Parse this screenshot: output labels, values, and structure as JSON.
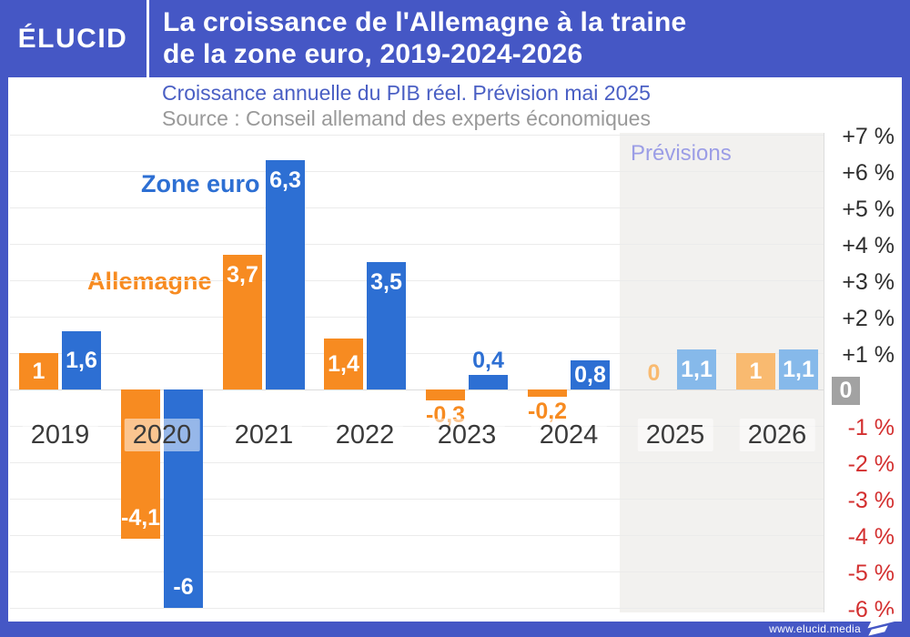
{
  "header": {
    "logo": "ÉLUCID",
    "title_line1": "La croissance de l'Allemagne à la traine",
    "title_line2": "de la zone euro, 2019-2024-2026"
  },
  "subheader": {
    "subtitle": "Croissance annuelle du PIB réel. Prévision mai 2025",
    "source": "Source : Conseil allemand des experts économiques"
  },
  "chart_data": {
    "type": "bar",
    "title": "La croissance de l'Allemagne à la traine de la zone euro, 2019-2024-2026",
    "subtitle": "Croissance annuelle du PIB réel. Prévision mai 2025",
    "source": "Source : Conseil allemand des experts économiques",
    "categories": [
      "2019",
      "2020",
      "2021",
      "2022",
      "2023",
      "2024",
      "2025",
      "2026"
    ],
    "series": [
      {
        "name": "Allemagne",
        "color": "#f78b21",
        "forecast_color": "#f9ba70",
        "values": [
          1,
          -4.1,
          3.7,
          1.4,
          -0.3,
          -0.2,
          0,
          1
        ],
        "labels": [
          "1",
          "-4,1",
          "3,7",
          "1,4",
          "-0,3",
          "-0,2",
          "0",
          "1"
        ],
        "label_positions": [
          "inside-center",
          "inside-bottom",
          "inside-top",
          "inside-center",
          "below",
          "below",
          "zero-label",
          "inside-center"
        ]
      },
      {
        "name": "Zone euro",
        "color": "#2d6fd3",
        "forecast_color": "#86b9ea",
        "values": [
          1.6,
          -6,
          6.3,
          3.5,
          0.4,
          0.8,
          1.1,
          1.1
        ],
        "labels": [
          "1,6",
          "-6",
          "6,3",
          "3,5",
          "0,4",
          "0,8",
          "1,1",
          "1,1"
        ],
        "label_positions": [
          "inside-center",
          "inside-bottom",
          "inside-top",
          "inside-top",
          "above",
          "inside-center",
          "inside-center",
          "inside-center"
        ]
      }
    ],
    "forecast_label": "Prévisions",
    "forecast_categories": [
      "2025",
      "2026"
    ],
    "forecast_start_index": 6,
    "ylim": [
      -6,
      7
    ],
    "y_ticks": [
      "+7 %",
      "+6 %",
      "+5 %",
      "+4 %",
      "+3 %",
      "+2 %",
      "+1 %",
      "0",
      "-1 %",
      "-2 %",
      "-3 %",
      "-4 %",
      "-5 %",
      "-6 %"
    ],
    "grid": true,
    "legend_position": "inline-labels",
    "colors": {
      "header_blue": "#4557c5",
      "subtitle_blue": "#4a5fc4",
      "source_gray": "#999999",
      "negative_tick_red": "#d32f2f",
      "zero_badge_gray": "#a2a2a2",
      "forecast_bg": "#f2f1ef",
      "forecast_label": "#9b9de6"
    }
  },
  "footer": {
    "url": "www.elucid.media"
  }
}
